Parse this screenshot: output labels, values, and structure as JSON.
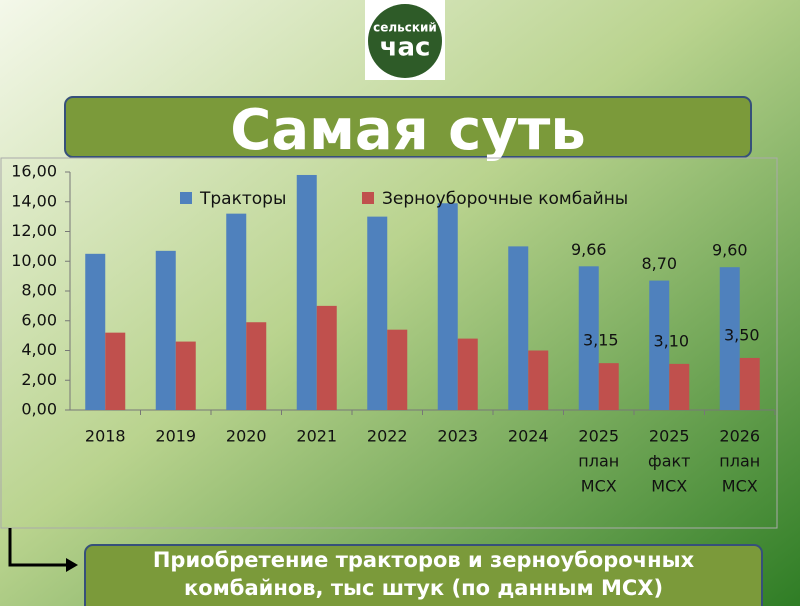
{
  "logo": {
    "top": "сельский",
    "bottom": "час"
  },
  "banner": {
    "title": "Самая суть"
  },
  "footer": {
    "caption": "Приобретение тракторов и зерноуборочных комбайнов, тыс штук (по данным МСХ)"
  },
  "chart_data": {
    "type": "bar",
    "categories": [
      [
        "2018"
      ],
      [
        "2019"
      ],
      [
        "2020"
      ],
      [
        "2021"
      ],
      [
        "2022"
      ],
      [
        "2023"
      ],
      [
        "2024"
      ],
      [
        "2025",
        "план",
        "МСХ"
      ],
      [
        "2025",
        "факт",
        "МСХ"
      ],
      [
        "2026",
        "план",
        "МСХ"
      ]
    ],
    "series": [
      {
        "name": "Тракторы",
        "color": "#4f81bd",
        "values": [
          10.5,
          10.7,
          13.2,
          15.8,
          13.0,
          13.9,
          11.0,
          9.66,
          8.7,
          9.6
        ],
        "value_labels": [
          null,
          null,
          null,
          null,
          null,
          null,
          null,
          "9,66",
          "8,70",
          "9,60"
        ]
      },
      {
        "name": "Зерноуборочные комбайны",
        "color": "#c0504d",
        "values": [
          5.2,
          4.6,
          5.9,
          7.0,
          5.4,
          4.8,
          4.0,
          3.15,
          3.1,
          3.5
        ],
        "value_labels": [
          null,
          null,
          null,
          null,
          null,
          null,
          null,
          "3,15",
          "3,10",
          "3,50"
        ]
      }
    ],
    "ylim": [
      0,
      16
    ],
    "yticks": [
      {
        "value": 0,
        "label": "0,00"
      },
      {
        "value": 2,
        "label": "2,00"
      },
      {
        "value": 4,
        "label": "4,00"
      },
      {
        "value": 6,
        "label": "6,00"
      },
      {
        "value": 8,
        "label": "8,00"
      },
      {
        "value": 10,
        "label": "10,00"
      },
      {
        "value": 12,
        "label": "12,00"
      },
      {
        "value": 14,
        "label": "14,00"
      },
      {
        "value": 16,
        "label": "16,00"
      }
    ],
    "grid": false,
    "legend": "top"
  }
}
